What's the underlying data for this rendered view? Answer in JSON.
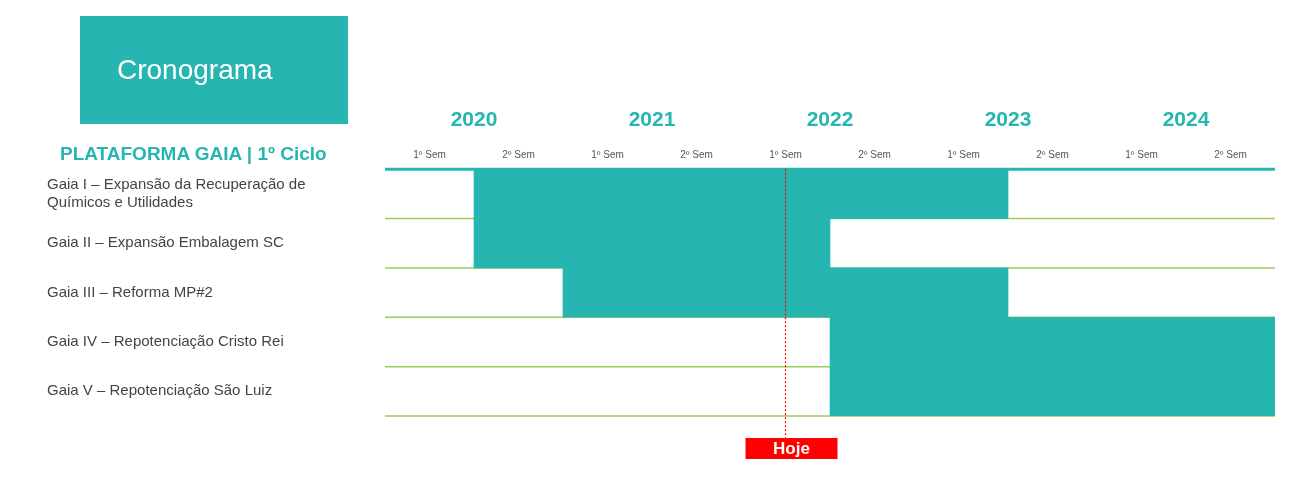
{
  "chart_data": {
    "type": "bar",
    "orientation": "horizontal",
    "title": "Cronograma",
    "ylabel": "PLATAFORMA GAIA | 1º Ciclo",
    "categories": [
      "Gaia I – Expansão da Recuperação de Químicos e Utilidades",
      "Gaia II – Expansão Embalagem SC",
      "Gaia III – Reforma MP#2",
      "Gaia IV – Repotenciação Cristo Rei",
      "Gaia V – Repotenciação São Luiz"
    ],
    "base": [
      2020,
      2020,
      2020.5,
      2022,
      2022
    ],
    "values": [
      3,
      2,
      2.5,
      2.5,
      2.5
    ],
    "color": "#26b5b0",
    "xlim": [
      2019.5,
      2024.5
    ],
    "xticks": [
      2020,
      2021,
      2022,
      2023,
      2024
    ],
    "annotations": [
      "1º Sem",
      "2º Sem",
      "1º Sem",
      "2º Sem",
      "1º Sem",
      "2º Sem",
      "1º Sem",
      "2º Sem",
      "1º Sem",
      "2º Sem"
    ],
    "ref_lines": [
      {
        "axis": "x",
        "value": 2021.75,
        "label": "Hoje",
        "color": "#ff0000",
        "line_style": "dotted"
      }
    ],
    "grid": "y",
    "legend": false
  }
}
